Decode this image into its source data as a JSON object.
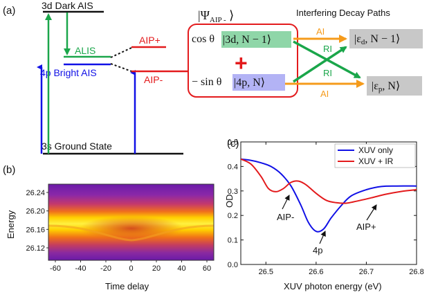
{
  "panel_a": {
    "label": "(a)",
    "levels": {
      "dark": "3d Dark AIS",
      "bright": "4p Bright AIS",
      "alis": "ALIS",
      "ground": "3s Ground State",
      "aip_plus": "AIP+",
      "aip_minus": "AIP-"
    },
    "psi_label": "|Ψ_AIP-⟩",
    "decay_title": "Interfering Decay Paths",
    "components": {
      "cos_coef": "cos θ",
      "cos_ket": "|3d, N − 1⟩",
      "sin_coef": "− sin θ",
      "sin_ket": "|4p, N⟩",
      "plus": "+"
    },
    "finals": {
      "top": "|ε_d, N − 1⟩",
      "bottom": "|ε_p, N⟩"
    },
    "paths": {
      "ai_top": "AI",
      "ri_top": "RI",
      "ri_bottom": "RI",
      "ai_bottom": "AI"
    },
    "colors": {
      "blue": "#1010e6",
      "green": "#1aa64a",
      "red": "#e31a1c",
      "orange": "#f59b1b",
      "green_fill": "#8fd6a8",
      "blue_fill": "#b3b3f5",
      "gray_fill": "#c8c8c8"
    }
  },
  "panel_b": {
    "label": "(b)",
    "ylabel": "Energy",
    "xlabel": "Time delay",
    "yticks": [
      "26.24",
      "26.20",
      "26.16",
      "26.12"
    ],
    "xticks": [
      "-60",
      "-40",
      "-20",
      "0",
      "20",
      "40",
      "60"
    ]
  },
  "panel_c": {
    "label": "(c)",
    "annotations": {
      "aip_minus": "AIP-",
      "fourp": "4p",
      "aip_plus": "AIP+"
    }
  },
  "chart_data": {
    "type": "line",
    "xlabel": "XUV photon energy (eV)",
    "ylabel": "OD",
    "xlim": [
      26.45,
      26.8
    ],
    "ylim": [
      0.0,
      0.5
    ],
    "xticks": [
      "26.5",
      "26.6",
      "26.7",
      "26.8"
    ],
    "yticks": [
      "0.0",
      "0.1",
      "0.2",
      "0.3",
      "0.4",
      "0.5"
    ],
    "legend_position": "top-right",
    "series": [
      {
        "name": "XUV only",
        "color": "#1010e6",
        "x": [
          26.45,
          26.47,
          26.49,
          26.51,
          26.53,
          26.55,
          26.57,
          26.585,
          26.6,
          26.615,
          26.63,
          26.65,
          26.67,
          26.7,
          26.73,
          26.76,
          26.8
        ],
        "y": [
          0.43,
          0.425,
          0.415,
          0.4,
          0.37,
          0.32,
          0.24,
          0.17,
          0.135,
          0.145,
          0.19,
          0.24,
          0.28,
          0.305,
          0.318,
          0.32,
          0.32
        ]
      },
      {
        "name": "XUV + IR",
        "color": "#e31a1c",
        "x": [
          26.45,
          26.47,
          26.49,
          26.505,
          26.52,
          26.535,
          26.55,
          26.565,
          26.58,
          26.6,
          26.62,
          26.64,
          26.66,
          26.68,
          26.71,
          26.74,
          26.77,
          26.8
        ],
        "y": [
          0.43,
          0.41,
          0.36,
          0.31,
          0.297,
          0.31,
          0.335,
          0.34,
          0.325,
          0.29,
          0.262,
          0.252,
          0.25,
          0.258,
          0.272,
          0.287,
          0.298,
          0.305
        ]
      }
    ]
  }
}
